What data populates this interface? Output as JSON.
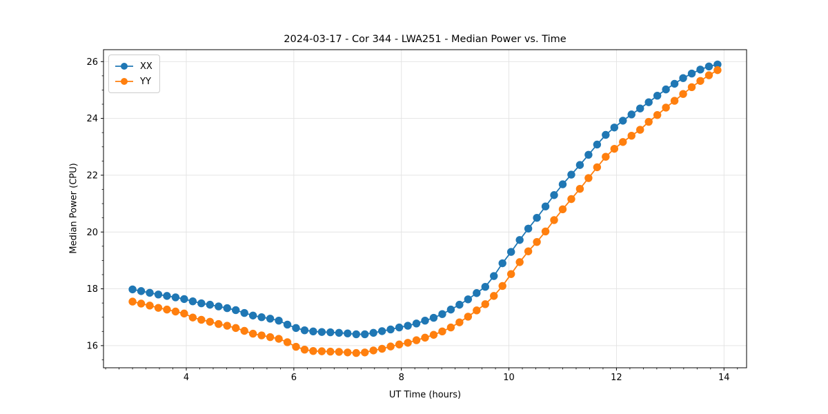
{
  "chart_data": {
    "type": "line",
    "title": "2024-03-17 - Cor 344 - LWA251 - Median Power vs. Time",
    "xlabel": "UT Time (hours)",
    "ylabel": "Median Power (CPU)",
    "xlim": [
      2.46,
      14.42
    ],
    "ylim": [
      15.22,
      26.42
    ],
    "x_major_ticks": [
      4,
      6,
      8,
      10,
      12,
      14
    ],
    "y_major_ticks": [
      16,
      18,
      20,
      22,
      24,
      26
    ],
    "x_minor_step": 0.25,
    "y_minor_step": 0.5,
    "grid": true,
    "grid_color": "#e2e2e2",
    "spine_color": "#000000",
    "legend_position": "upper-left",
    "marker": "circle",
    "marker_radius": 5.7,
    "line_width": 1.8,
    "x": [
      3.0,
      3.16,
      3.32,
      3.48,
      3.64,
      3.8,
      3.96,
      4.12,
      4.28,
      4.44,
      4.6,
      4.76,
      4.92,
      5.08,
      5.24,
      5.4,
      5.56,
      5.72,
      5.88,
      6.04,
      6.2,
      6.36,
      6.52,
      6.68,
      6.84,
      7.0,
      7.16,
      7.32,
      7.48,
      7.64,
      7.8,
      7.96,
      8.12,
      8.28,
      8.44,
      8.6,
      8.76,
      8.92,
      9.08,
      9.24,
      9.4,
      9.56,
      9.72,
      9.88,
      10.04,
      10.2,
      10.36,
      10.52,
      10.68,
      10.84,
      11.0,
      11.16,
      11.32,
      11.48,
      11.64,
      11.8,
      11.96,
      12.12,
      12.28,
      12.44,
      12.6,
      12.76,
      12.92,
      13.08,
      13.24,
      13.4,
      13.56,
      13.72,
      13.88
    ],
    "series": [
      {
        "name": "XX",
        "color": "#1f77b4",
        "values": [
          17.98,
          17.92,
          17.86,
          17.8,
          17.75,
          17.7,
          17.64,
          17.56,
          17.49,
          17.44,
          17.38,
          17.32,
          17.25,
          17.15,
          17.06,
          17.0,
          16.95,
          16.88,
          16.74,
          16.62,
          16.54,
          16.5,
          16.48,
          16.47,
          16.45,
          16.43,
          16.4,
          16.4,
          16.45,
          16.51,
          16.57,
          16.64,
          16.7,
          16.78,
          16.88,
          16.98,
          17.11,
          17.27,
          17.44,
          17.63,
          17.85,
          18.07,
          18.45,
          18.9,
          19.3,
          19.72,
          20.12,
          20.5,
          20.9,
          21.3,
          21.68,
          22.02,
          22.36,
          22.72,
          23.08,
          23.42,
          23.68,
          23.92,
          24.14,
          24.35,
          24.57,
          24.8,
          25.02,
          25.22,
          25.42,
          25.58,
          25.72,
          25.83,
          25.9
        ]
      },
      {
        "name": "YY",
        "color": "#ff7f0e",
        "values": [
          17.55,
          17.48,
          17.41,
          17.33,
          17.27,
          17.2,
          17.13,
          16.99,
          16.91,
          16.84,
          16.76,
          16.7,
          16.62,
          16.52,
          16.42,
          16.36,
          16.3,
          16.24,
          16.12,
          15.96,
          15.86,
          15.81,
          15.8,
          15.79,
          15.78,
          15.76,
          15.74,
          15.76,
          15.83,
          15.89,
          15.97,
          16.04,
          16.1,
          16.19,
          16.28,
          16.38,
          16.5,
          16.64,
          16.82,
          17.02,
          17.24,
          17.46,
          17.75,
          18.1,
          18.52,
          18.94,
          19.32,
          19.65,
          20.02,
          20.42,
          20.8,
          21.16,
          21.52,
          21.9,
          22.28,
          22.65,
          22.93,
          23.17,
          23.39,
          23.6,
          23.88,
          24.12,
          24.38,
          24.62,
          24.86,
          25.1,
          25.32,
          25.52,
          25.7
        ]
      }
    ]
  }
}
